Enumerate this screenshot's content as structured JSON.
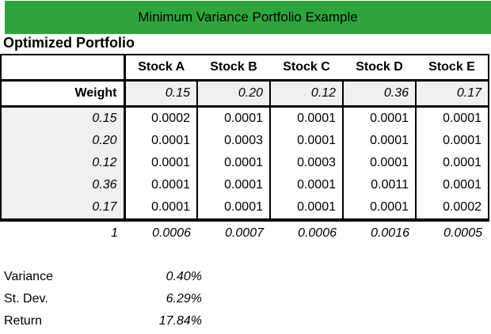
{
  "banner": {
    "title": "Minimum Variance Portfolio Example"
  },
  "section_title": "Optimized Portfolio",
  "table": {
    "corner_label": "",
    "stock_headers": [
      "Stock A",
      "Stock B",
      "Stock C",
      "Stock D",
      "Stock E"
    ],
    "weight_row": {
      "label": "Weight",
      "values": [
        "0.15",
        "0.20",
        "0.12",
        "0.36",
        "0.17"
      ]
    },
    "matrix_rows": [
      {
        "weight": "0.15",
        "values": [
          "0.0002",
          "0.0001",
          "0.0001",
          "0.0001",
          "0.0001"
        ]
      },
      {
        "weight": "0.20",
        "values": [
          "0.0001",
          "0.0003",
          "0.0001",
          "0.0001",
          "0.0001"
        ]
      },
      {
        "weight": "0.12",
        "values": [
          "0.0001",
          "0.0001",
          "0.0003",
          "0.0001",
          "0.0001"
        ]
      },
      {
        "weight": "0.36",
        "values": [
          "0.0001",
          "0.0001",
          "0.0001",
          "0.0011",
          "0.0001"
        ]
      },
      {
        "weight": "0.17",
        "values": [
          "0.0001",
          "0.0001",
          "0.0001",
          "0.0001",
          "0.0002"
        ]
      }
    ],
    "totals_row": {
      "label": "1",
      "values": [
        "0.0006",
        "0.0007",
        "0.0006",
        "0.0016",
        "0.0005"
      ]
    }
  },
  "stats": [
    {
      "label": "Variance",
      "value": "0.40%"
    },
    {
      "label": "St. Dev.",
      "value": "6.29%"
    },
    {
      "label": "Return",
      "value": "17.84%"
    }
  ],
  "colors": {
    "banner_green": "#2fa43c",
    "cell_gray": "#f0f0f0",
    "border_black": "#000000"
  }
}
